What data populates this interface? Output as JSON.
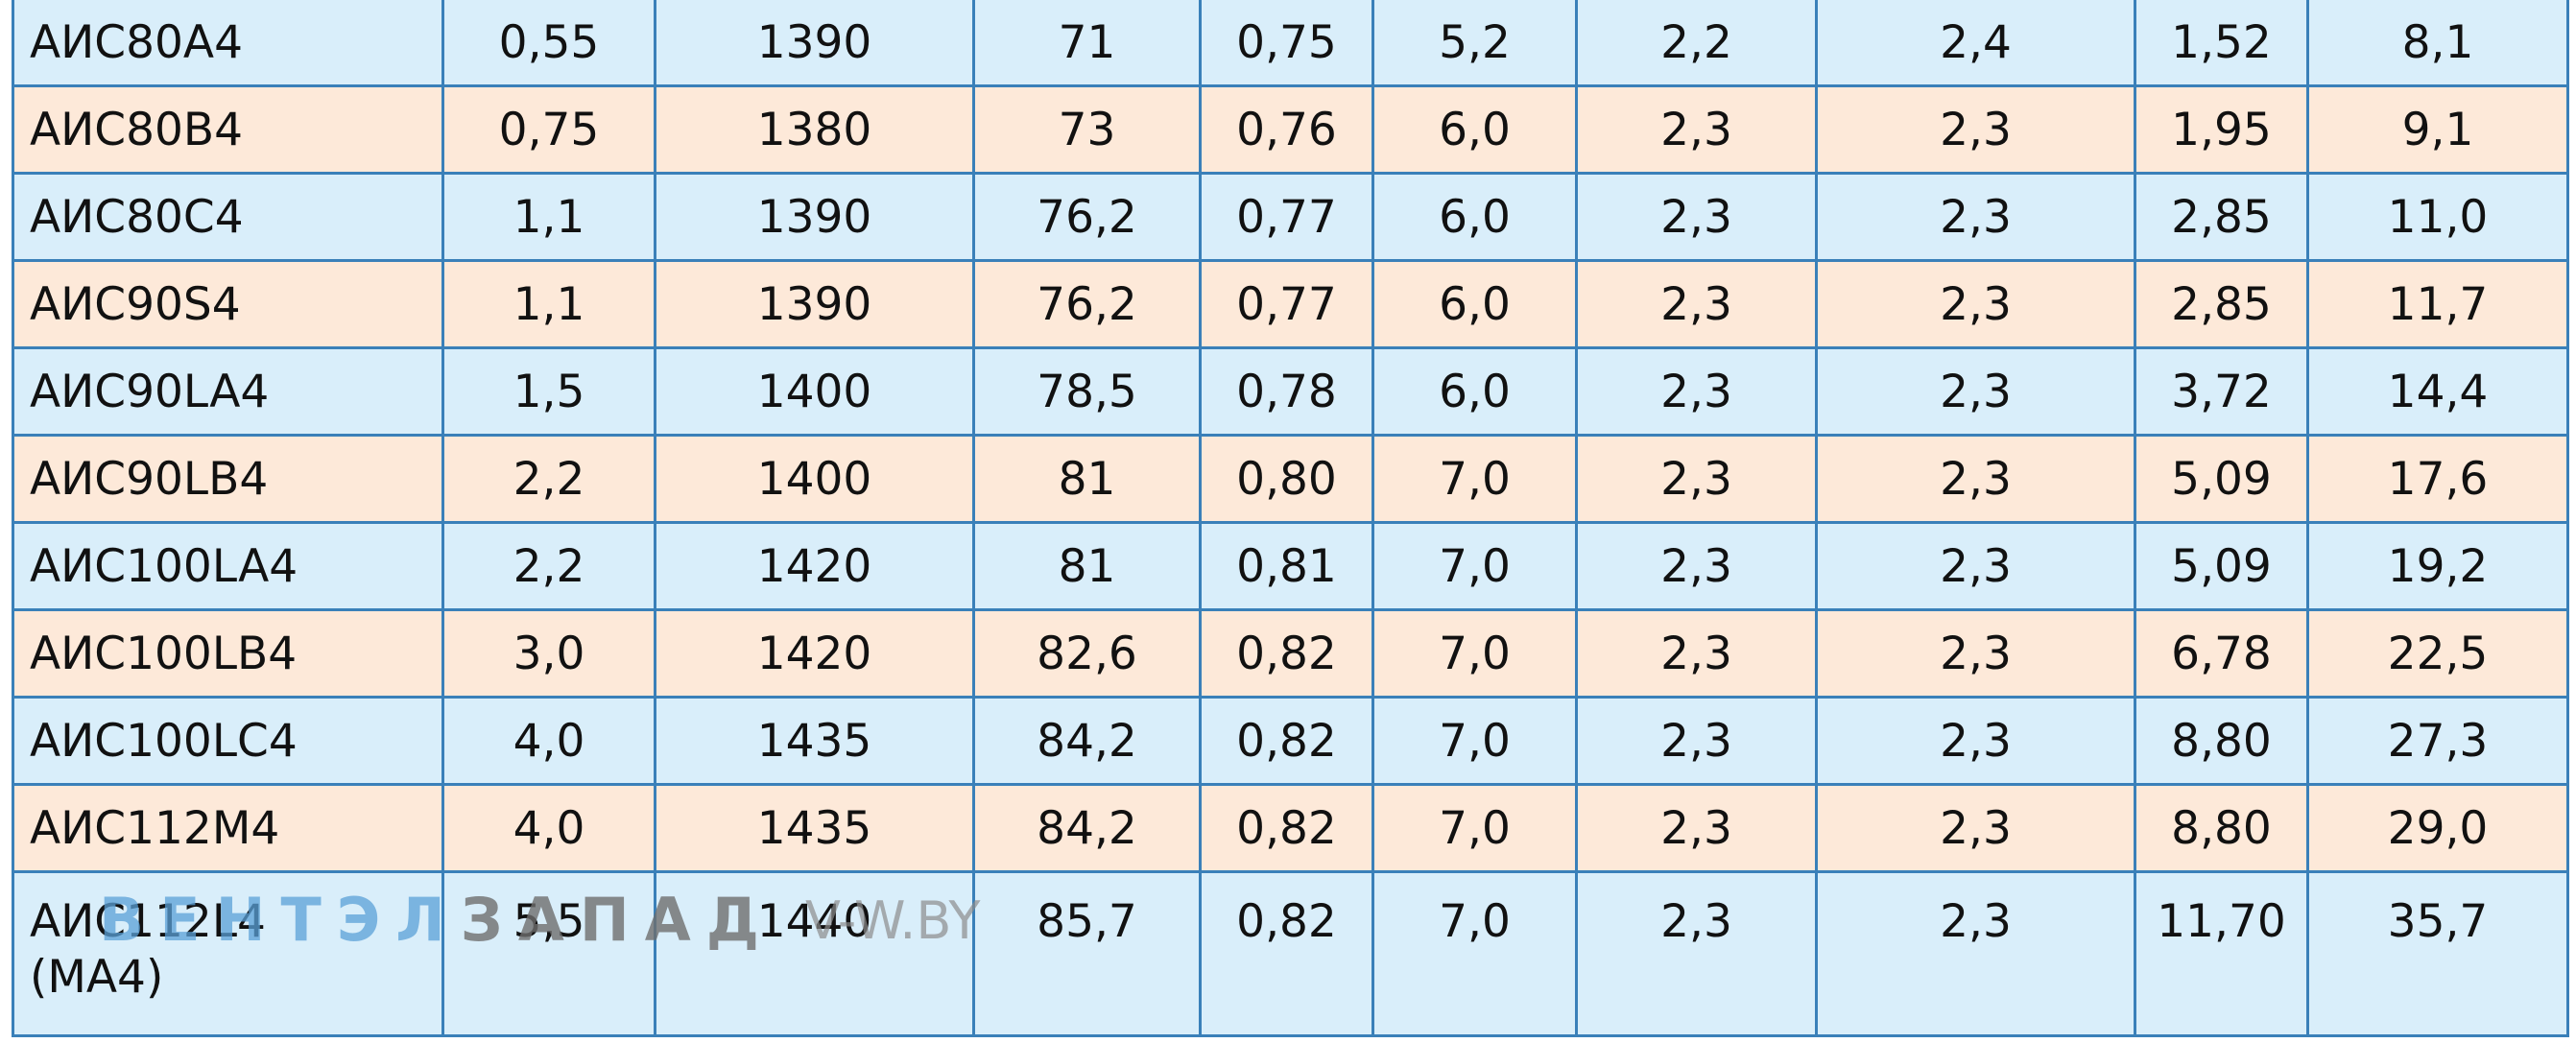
{
  "table": {
    "rows": [
      [
        "АИС80А4",
        "0,55",
        "1390",
        "71",
        "0,75",
        "5,2",
        "2,2",
        "2,4",
        "1,52",
        "8,1"
      ],
      [
        "АИС80В4",
        "0,75",
        "1380",
        "73",
        "0,76",
        "6,0",
        "2,3",
        "2,3",
        "1,95",
        "9,1"
      ],
      [
        "АИС80С4",
        "1,1",
        "1390",
        "76,2",
        "0,77",
        "6,0",
        "2,3",
        "2,3",
        "2,85",
        "11,0"
      ],
      [
        "АИС90S4",
        "1,1",
        "1390",
        "76,2",
        "0,77",
        "6,0",
        "2,3",
        "2,3",
        "2,85",
        "11,7"
      ],
      [
        "АИС90LA4",
        "1,5",
        "1400",
        "78,5",
        "0,78",
        "6,0",
        "2,3",
        "2,3",
        "3,72",
        "14,4"
      ],
      [
        "АИС90LB4",
        "2,2",
        "1400",
        "81",
        "0,80",
        "7,0",
        "2,3",
        "2,3",
        "5,09",
        "17,6"
      ],
      [
        "АИС100LA4",
        "2,2",
        "1420",
        "81",
        "0,81",
        "7,0",
        "2,3",
        "2,3",
        "5,09",
        "19,2"
      ],
      [
        "АИС100LB4",
        "3,0",
        "1420",
        "82,6",
        "0,82",
        "7,0",
        "2,3",
        "2,3",
        "6,78",
        "22,5"
      ],
      [
        "АИС100LC4",
        "4,0",
        "1435",
        "84,2",
        "0,82",
        "7,0",
        "2,3",
        "2,3",
        "8,80",
        "27,3"
      ],
      [
        "АИС112М4",
        "4,0",
        "1435",
        "84,2",
        "0,82",
        "7,0",
        "2,3",
        "2,3",
        "8,80",
        "29,0"
      ],
      [
        "АИС112L4\n(МА4)",
        "5,5",
        "1440",
        "85,7",
        "0,82",
        "7,0",
        "2,3",
        "2,3",
        "11,70",
        "35,7"
      ]
    ]
  },
  "watermark": {
    "brand_part1": "ВЕНТЭЛ",
    "brand_part2": "ЗАПАД",
    "site": "V-W.BY"
  }
}
